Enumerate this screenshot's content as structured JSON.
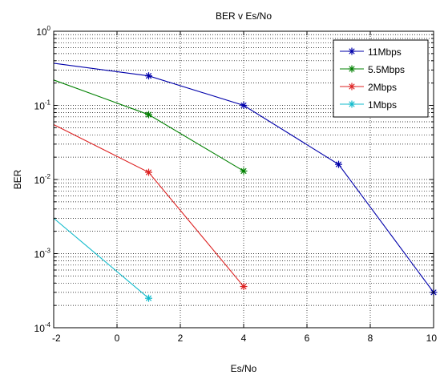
{
  "chart_data": {
    "type": "line",
    "title": "BER v Es/No",
    "xlabel": "Es/No",
    "ylabel": "BER",
    "xlim": [
      -2,
      10
    ],
    "ylim": [
      0.0001,
      1
    ],
    "yscale": "log",
    "grid": true,
    "legend": "top-right",
    "x_ticks": [
      {
        "value": -2,
        "label": "-2"
      },
      {
        "value": 0,
        "label": "0"
      },
      {
        "value": 2,
        "label": "2"
      },
      {
        "value": 4,
        "label": "4"
      },
      {
        "value": 6,
        "label": "6"
      },
      {
        "value": 8,
        "label": "8"
      },
      {
        "value": 10,
        "label": "10"
      }
    ],
    "y_ticks": [
      {
        "value": 1,
        "base": "10",
        "exp": "0"
      },
      {
        "value": 0.1,
        "base": "10",
        "exp": "-1"
      },
      {
        "value": 0.01,
        "base": "10",
        "exp": "-2"
      },
      {
        "value": 0.001,
        "base": "10",
        "exp": "-3"
      },
      {
        "value": 0.0001,
        "base": "10",
        "exp": "-4"
      }
    ],
    "series": [
      {
        "name": "11Mbps",
        "color": "#0000aa",
        "marker": "*",
        "x": [
          -2,
          1,
          4,
          7,
          10
        ],
        "y": [
          0.37,
          0.25,
          0.1,
          0.016,
          0.0003
        ]
      },
      {
        "name": "5.5Mbps",
        "color": "#008000",
        "marker": "*",
        "x": [
          -2,
          1,
          4
        ],
        "y": [
          0.22,
          0.075,
          0.013
        ]
      },
      {
        "name": "2Mbps",
        "color": "#dd2222",
        "marker": "*",
        "x": [
          -2,
          1,
          4
        ],
        "y": [
          0.055,
          0.0125,
          0.00036
        ]
      },
      {
        "name": "1Mbps",
        "color": "#11bbcc",
        "marker": "*",
        "x": [
          -2,
          1
        ],
        "y": [
          0.003,
          0.00025
        ]
      }
    ]
  }
}
